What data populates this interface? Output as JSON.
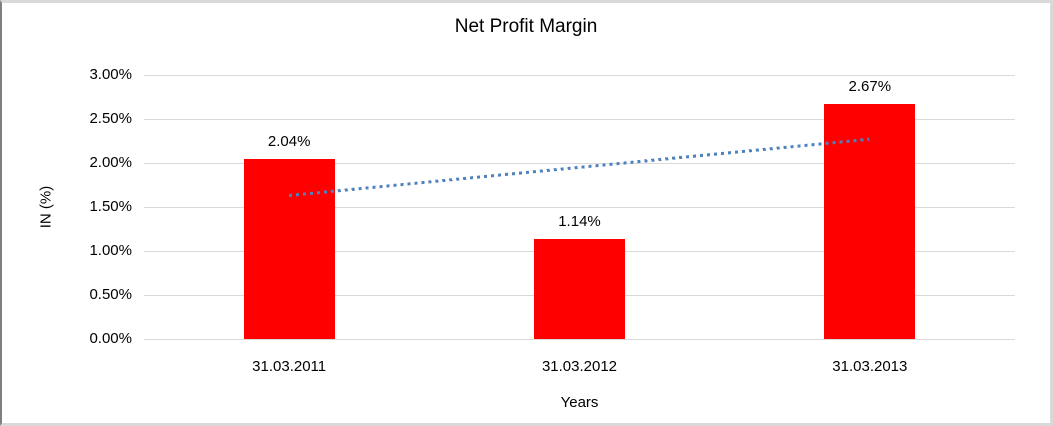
{
  "chart_data": {
    "type": "bar",
    "title": "Net Profit Margin",
    "xlabel": "Years",
    "ylabel": "IN (%)",
    "categories": [
      "31.03.2011",
      "31.03.2012",
      "31.03.2013"
    ],
    "values": [
      2.04,
      1.14,
      2.67
    ],
    "data_labels": [
      "2.04%",
      "1.14%",
      "2.67%"
    ],
    "bar_color": "#ff0000",
    "ylim": [
      0,
      3.0
    ],
    "yticks": [
      {
        "value": 3.0,
        "label": "3.00%"
      },
      {
        "value": 2.5,
        "label": "2.50%"
      },
      {
        "value": 2.0,
        "label": "2.00%"
      },
      {
        "value": 1.5,
        "label": "1.50%"
      },
      {
        "value": 1.0,
        "label": "1.00%"
      },
      {
        "value": 0.5,
        "label": "0.50%"
      },
      {
        "value": 0.0,
        "label": "0.00%"
      }
    ],
    "grid": true,
    "legend": "none",
    "gridline_color": "#d9d9d9",
    "trendline": {
      "type": "linear",
      "style": "dotted",
      "color": "#4f81bd",
      "start_value": 1.63,
      "end_value": 2.27
    }
  }
}
